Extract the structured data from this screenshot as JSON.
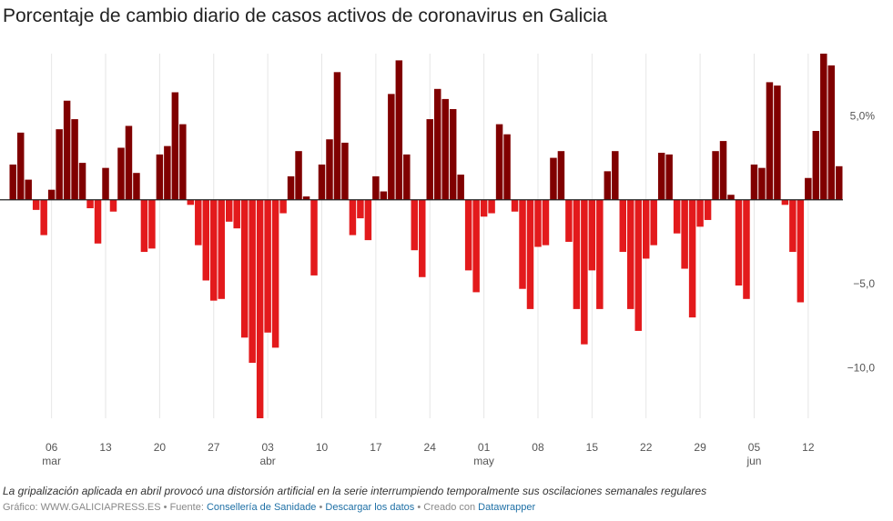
{
  "chart_data": {
    "type": "bar",
    "title": "Porcentaje de cambio diario de casos activos de coronavirus en Galicia",
    "xlabel": "",
    "ylabel": "",
    "ylim": [
      -13.0,
      8.7
    ],
    "yticks": [
      5.0,
      -5.0,
      -10.0
    ],
    "ytick_labels": [
      "5,0%",
      "−5,0",
      "−10,0"
    ],
    "grid": true,
    "colors": {
      "positive": "#800000",
      "negative": "#e31a1c"
    },
    "x_day_ticks": [
      {
        "index": 5,
        "label": "06"
      },
      {
        "index": 12,
        "label": "13"
      },
      {
        "index": 19,
        "label": "20"
      },
      {
        "index": 26,
        "label": "27"
      },
      {
        "index": 33,
        "label": "03"
      },
      {
        "index": 40,
        "label": "10"
      },
      {
        "index": 47,
        "label": "17"
      },
      {
        "index": 54,
        "label": "24"
      },
      {
        "index": 61,
        "label": "01"
      },
      {
        "index": 68,
        "label": "08"
      },
      {
        "index": 75,
        "label": "15"
      },
      {
        "index": 82,
        "label": "22"
      },
      {
        "index": 89,
        "label": "29"
      },
      {
        "index": 96,
        "label": "05"
      },
      {
        "index": 103,
        "label": "12"
      }
    ],
    "x_month_ticks": [
      {
        "index": 5,
        "label": "mar"
      },
      {
        "index": 33,
        "label": "abr"
      },
      {
        "index": 61,
        "label": "may"
      },
      {
        "index": 96,
        "label": "jun"
      }
    ],
    "values": [
      2.1,
      4.0,
      1.2,
      -0.6,
      -2.1,
      0.6,
      4.2,
      5.9,
      4.8,
      2.2,
      -0.5,
      -2.6,
      1.9,
      -0.7,
      3.1,
      4.4,
      1.6,
      -3.1,
      -2.9,
      2.7,
      3.2,
      6.4,
      4.5,
      -0.3,
      -2.7,
      -4.8,
      -6.0,
      -5.9,
      -1.3,
      -1.7,
      -8.2,
      -9.7,
      -13.0,
      -7.9,
      -8.8,
      -0.8,
      1.4,
      2.9,
      0.2,
      -4.5,
      2.1,
      3.6,
      7.6,
      3.4,
      -2.1,
      -1.1,
      -2.4,
      1.4,
      0.5,
      6.3,
      8.3,
      2.7,
      -3.0,
      -4.6,
      4.8,
      6.6,
      6.0,
      5.4,
      1.5,
      -4.2,
      -5.5,
      -1.0,
      -0.8,
      4.5,
      3.9,
      -0.7,
      -5.3,
      -6.5,
      -2.8,
      -2.7,
      2.5,
      2.9,
      -2.5,
      -6.5,
      -8.6,
      -4.2,
      -6.5,
      1.7,
      2.9,
      -3.1,
      -6.5,
      -7.8,
      -3.5,
      -2.7,
      2.8,
      2.7,
      -2.0,
      -4.1,
      -7.0,
      -1.6,
      -1.2,
      2.9,
      3.5,
      0.3,
      -5.1,
      -5.9,
      2.1,
      1.9,
      7.0,
      6.8,
      -0.3,
      -3.1,
      -6.1,
      1.3,
      4.1,
      8.7,
      8.0,
      2.0
    ]
  },
  "footer": {
    "note": "La gripalización aplicada en abril provocó una distorsión artificial en la serie interrumpiendo temporalmente sus oscilaciones semanales regulares",
    "graphic_label": "Gráfico: WWW.GALICIAPRESS.ES",
    "source_prefix": "Fuente:",
    "source_name": "Consellería de Sanidade",
    "download_label": "Descargar los datos",
    "created_prefix": "Creado con",
    "created_tool": "Datawrapper",
    "separator": "•"
  }
}
